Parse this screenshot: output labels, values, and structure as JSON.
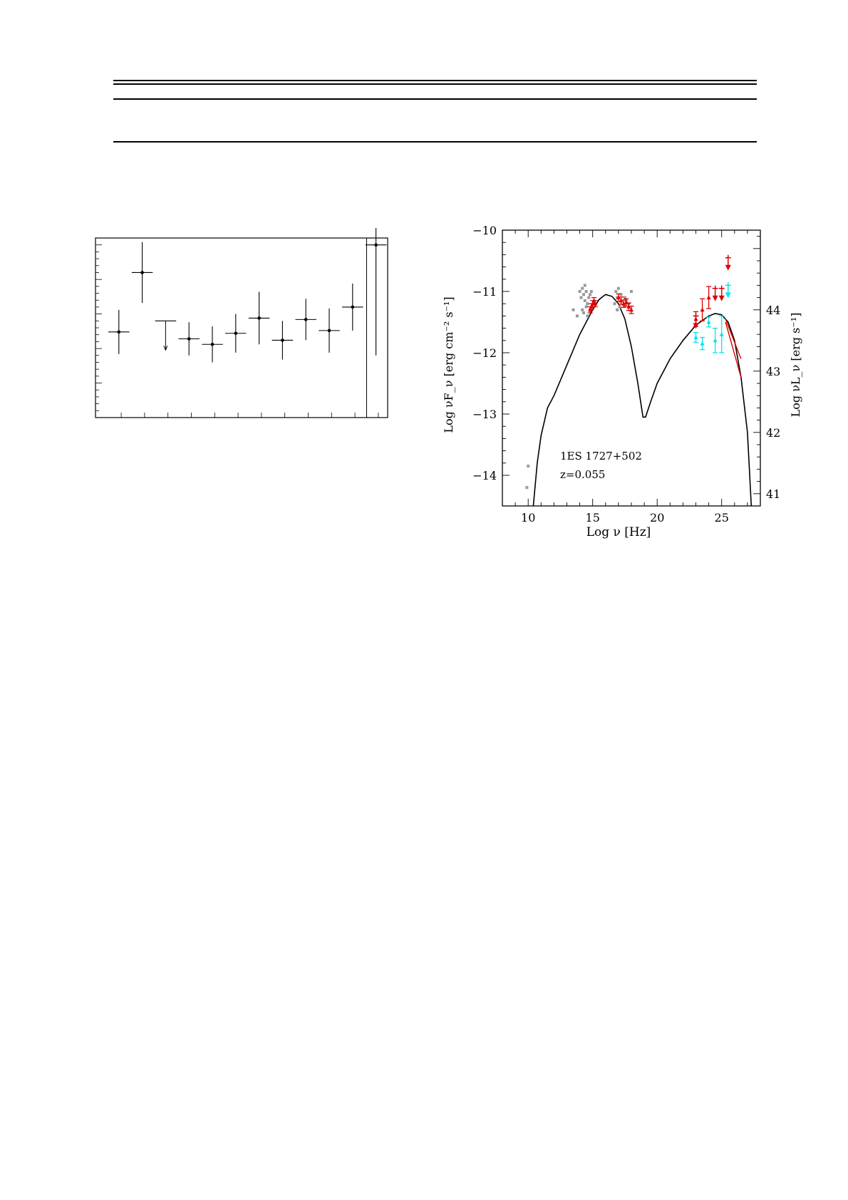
{
  "table": {},
  "lightcurve_panel": {
    "chart_data": {
      "type": "scatter",
      "title": "",
      "xlabel": "",
      "ylabel": "",
      "x": [
        1,
        2,
        3,
        4,
        5,
        6,
        7,
        8,
        9,
        10,
        11,
        12
      ],
      "y": [
        0.62,
        1.05,
        0.7,
        0.57,
        0.53,
        0.61,
        0.72,
        0.56,
        0.71,
        0.63,
        0.8,
        1.25
      ],
      "y_err_low": [
        0.16,
        0.22,
        0.0,
        0.12,
        0.13,
        0.14,
        0.19,
        0.14,
        0.15,
        0.16,
        0.17,
        0.8
      ],
      "y_err_high": [
        0.16,
        0.22,
        0.0,
        0.12,
        0.13,
        0.14,
        0.19,
        0.14,
        0.15,
        0.16,
        0.17,
        0.8
      ],
      "x_err": [
        0.45,
        0.45,
        0.45,
        0.45,
        0.45,
        0.45,
        0.45,
        0.45,
        0.45,
        0.45,
        0.45,
        0.45
      ],
      "upper_limit_index": 2,
      "xlim": [
        0,
        12.5
      ],
      "ylim": [
        0,
        1.3
      ]
    }
  },
  "sed_panel": {
    "annotation": {
      "source": "1ES 1727+502",
      "redshift": "z=0.055"
    },
    "chart_data": {
      "type": "scatter",
      "xlabel": "Log ν  [Hz]",
      "ylabel_left": "Log νF_ν  [erg cm⁻² s⁻¹]",
      "ylabel_right": "Log νL_ν  [erg s⁻¹]",
      "xlim": [
        8,
        28
      ],
      "ylim": [
        -14.5,
        -10
      ],
      "x_ticks": [
        10,
        15,
        20,
        25
      ],
      "y_ticks": [
        -14,
        -13,
        -12,
        -11,
        -10
      ],
      "y2_ticks": [
        41,
        42,
        43,
        44
      ],
      "y2_offset": 55.3,
      "model_curve": {
        "color": "#000000",
        "x": [
          10.4,
          10.7,
          11.0,
          11.5,
          12.0,
          13.0,
          14.0,
          15.0,
          15.5,
          16.0,
          16.5,
          17.0,
          17.5,
          18.0,
          18.5,
          18.9,
          19.1,
          19.5,
          20.0,
          21.0,
          22.0,
          23.0,
          24.0,
          24.5,
          25.0,
          25.5,
          26.0,
          26.5,
          27.0,
          27.3
        ],
        "y": [
          -14.5,
          -13.8,
          -13.35,
          -12.9,
          -12.7,
          -12.2,
          -11.7,
          -11.3,
          -11.13,
          -11.05,
          -11.08,
          -11.2,
          -11.45,
          -11.9,
          -12.5,
          -13.05,
          -13.05,
          -12.8,
          -12.5,
          -12.1,
          -11.8,
          -11.55,
          -11.4,
          -11.36,
          -11.38,
          -11.5,
          -11.8,
          -12.4,
          -13.3,
          -14.5
        ]
      },
      "archival": {
        "color": "#999999",
        "x": [
          13.5,
          13.8,
          14.0,
          14.1,
          14.2,
          14.3,
          14.4,
          14.5,
          14.6,
          14.7,
          14.8,
          14.9,
          14.2,
          14.3,
          14.5,
          14.6,
          14.4,
          14.8,
          16.7,
          16.8,
          16.9,
          17.0,
          17.2,
          17.5,
          17.8,
          18.0,
          16.9,
          17.1,
          17.6,
          9.9,
          10.0
        ],
        "y": [
          -11.3,
          -11.4,
          -11.0,
          -11.1,
          -10.95,
          -11.05,
          -11.15,
          -11.0,
          -11.2,
          -11.1,
          -11.05,
          -11.0,
          -11.3,
          -11.35,
          -11.25,
          -11.4,
          -10.9,
          -11.3,
          -11.2,
          -11.0,
          -11.1,
          -10.95,
          -11.05,
          -11.1,
          -11.2,
          -11.0,
          -11.3,
          -11.25,
          -11.15,
          -14.2,
          -13.85
        ]
      },
      "red_data": {
        "color": "#dd0000",
        "x": [
          14.8,
          14.9,
          15.0,
          15.1,
          15.2,
          17.0,
          17.2,
          17.4,
          17.6,
          17.8,
          18.0,
          23.0,
          23.5,
          24.0
        ],
        "y": [
          -11.3,
          -11.25,
          -11.2,
          -11.15,
          -11.2,
          -11.1,
          -11.15,
          -11.2,
          -11.18,
          -11.25,
          -11.3,
          -11.45,
          -11.3,
          -11.1
        ],
        "err": [
          0.05,
          0.05,
          0.05,
          0.05,
          0.05,
          0.06,
          0.06,
          0.06,
          0.06,
          0.06,
          0.06,
          0.12,
          0.18,
          0.18
        ]
      },
      "red_upper_limits": {
        "color": "#dd0000",
        "x": [
          23.0,
          24.5,
          25.0,
          25.5
        ],
        "y": [
          -11.4,
          -10.95,
          -10.95,
          -10.45
        ]
      },
      "cyan_data": {
        "color": "#00e5ee",
        "x": [
          23.0,
          23.5,
          24.0,
          24.5,
          25.0
        ],
        "y": [
          -11.75,
          -11.85,
          -11.5,
          -11.8,
          -11.7
        ],
        "err": [
          0.08,
          0.1,
          0.08,
          0.2,
          0.3
        ]
      },
      "cyan_upper_limits": {
        "color": "#00e5ee",
        "x": [
          25.5
        ],
        "y": [
          -10.9
        ]
      },
      "red_bowtie": {
        "color": "#dd0000",
        "upper": {
          "x": [
            25.3,
            26.5
          ],
          "y": [
            -11.45,
            -12.1
          ]
        },
        "lower": {
          "x": [
            25.3,
            26.5
          ],
          "y": [
            -11.5,
            -12.4
          ]
        }
      }
    }
  }
}
